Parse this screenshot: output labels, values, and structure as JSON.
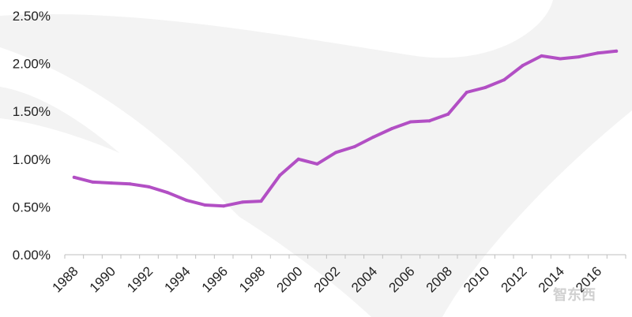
{
  "chart_data": {
    "type": "line",
    "title": "",
    "xlabel": "",
    "ylabel": "",
    "x": [
      1988,
      1989,
      1990,
      1991,
      1992,
      1993,
      1994,
      1995,
      1996,
      1997,
      1998,
      1999,
      2000,
      2001,
      2002,
      2003,
      2004,
      2005,
      2006,
      2007,
      2008,
      2009,
      2010,
      2011,
      2012,
      2013,
      2014,
      2015,
      2016,
      2017
    ],
    "series": [
      {
        "name": "",
        "values": [
          0.81,
          0.76,
          0.75,
          0.74,
          0.71,
          0.65,
          0.57,
          0.52,
          0.51,
          0.55,
          0.56,
          0.83,
          1.0,
          0.95,
          1.07,
          1.13,
          1.23,
          1.32,
          1.39,
          1.4,
          1.47,
          1.7,
          1.75,
          1.83,
          1.98,
          2.08,
          2.05,
          2.07,
          2.11,
          2.13
        ]
      }
    ],
    "x_tick_labels": [
      "1988",
      "1990",
      "1992",
      "1994",
      "1996",
      "1998",
      "2000",
      "2002",
      "2004",
      "2006",
      "2008",
      "2010",
      "2012",
      "2014",
      "2016"
    ],
    "y_tick_labels": [
      "0.00%",
      "0.50%",
      "1.00%",
      "1.50%",
      "2.00%",
      "2.50%"
    ],
    "y_ticks": [
      0,
      0.5,
      1.0,
      1.5,
      2.0,
      2.5
    ],
    "xlim": [
      1987.5,
      2017.5
    ],
    "ylim": [
      0,
      2.5
    ],
    "grid": false,
    "legend": "none",
    "colors": {
      "line": "#b24fc4",
      "axis": "#bfbfbf",
      "text": "#222222",
      "background_shape": "#f2f2f2"
    }
  },
  "watermark": {
    "text": "智东西"
  }
}
